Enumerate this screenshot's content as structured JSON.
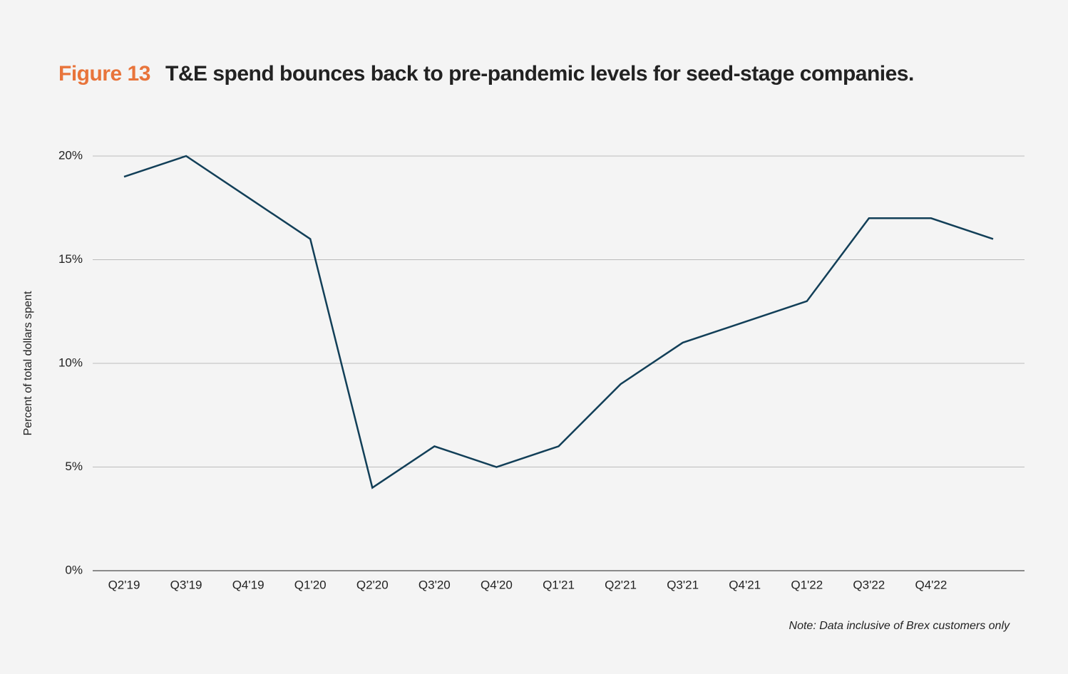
{
  "chart_data": {
    "type": "line",
    "figure_label": "Figure 13",
    "title": "T&E spend bounces back to pre-pandemic levels for seed-stage companies.",
    "y_label": "Percent of total dollars spent",
    "note": "Note: Data inclusive of Brex customers only",
    "categories": [
      "Q2'19",
      "Q3'19",
      "Q4'19",
      "Q1'20",
      "Q2'20",
      "Q3'20",
      "Q4'20",
      "Q1'21",
      "Q2'21",
      "Q3'21",
      "Q4'21",
      "Q1'22",
      "Q3'22",
      "Q4'22",
      null
    ],
    "series": [
      {
        "name": "T&E spend",
        "color": "#123f58",
        "values": [
          19,
          20,
          18,
          16,
          4,
          6,
          5,
          6,
          9,
          11,
          12,
          13,
          17,
          17,
          16
        ]
      }
    ],
    "ylim": [
      0,
      20
    ],
    "yticks": [
      {
        "value": 0,
        "label": "0%"
      },
      {
        "value": 5,
        "label": "5%"
      },
      {
        "value": 10,
        "label": "10%"
      },
      {
        "value": 15,
        "label": "15%"
      },
      {
        "value": 20,
        "label": "20%"
      }
    ],
    "grid": true
  }
}
